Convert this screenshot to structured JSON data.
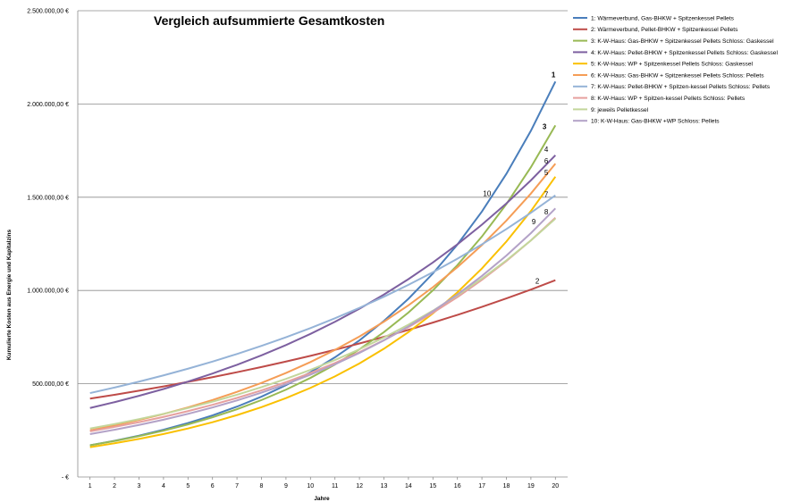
{
  "chart_data": {
    "type": "line",
    "title": "Vergleich aufsummierte Gesamtkosten",
    "xlabel": "Jahre",
    "ylabel": "Kumulierte Kosten aus Energie und Kapitalzins",
    "x": [
      1,
      2,
      3,
      4,
      5,
      6,
      7,
      8,
      9,
      10,
      11,
      12,
      13,
      14,
      15,
      16,
      17,
      18,
      19,
      20
    ],
    "xlim": [
      0.5,
      20.5
    ],
    "ylim": [
      0,
      2500000
    ],
    "y_ticks": [
      0,
      500000,
      1000000,
      1500000,
      2000000,
      2500000
    ],
    "y_tick_labels": [
      "-   €",
      "500.000,00 €",
      "1.000.000,00 €",
      "1.500.000,00 €",
      "2.000.000,00 €",
      "2.500.000,00 €"
    ],
    "grid": true,
    "legend_position": "right",
    "series": [
      {
        "name": "1: Wärmeverbund, Gas-BHKW + Spitzenkessel Pellets",
        "label": "1",
        "color": "#4a7ebb",
        "start": 170000,
        "end": 2120000
      },
      {
        "name": "2: Wärmeverbund, Pellet-BHKW + Spitzenkessel Pellets",
        "label": "2",
        "color": "#be4b48",
        "start": 420000,
        "end": 1055000
      },
      {
        "name": "3: K-W-Haus: Gas-BHKW + Spitzenkessel Pellets Schloss: Gaskessel",
        "label": "3",
        "color": "#98b954",
        "start": 170000,
        "end": 1885000
      },
      {
        "name": "4: K-W-Haus: Pellet-BHKW + Spitzenkessel Pellets Schloss: Gaskessel",
        "label": "4",
        "color": "#7d60a0",
        "start": 370000,
        "end": 1725000
      },
      {
        "name": "5: K-W-Haus: WP + Spitzenkessel Pellets Schloss: Gaskessel",
        "label": "5",
        "color": "#fac000",
        "start": 160000,
        "end": 1610000
      },
      {
        "name": "6: K-W-Haus: Gas-BHKW + Spitzenkessel Pellets Schloss: Pellets",
        "label": "6",
        "color": "#f59d56",
        "start": 250000,
        "end": 1680000
      },
      {
        "name": "7: K-W-Haus: Pellet-BHKW + Spitzen-kessel Pellets Schloss: Pellets",
        "label": "7",
        "color": "#95b3d7",
        "start": 450000,
        "end": 1510000
      },
      {
        "name": "8: K-W-Haus: WP + Spitzen-kessel Pellets Schloss: Pellets",
        "label": "8",
        "color": "#e6a09e",
        "start": 245000,
        "end": 1390000
      },
      {
        "name": "9: jeweils Pelletkessel",
        "label": "9",
        "color": "#c3d69b",
        "start": 260000,
        "end": 1385000
      },
      {
        "name": "10: K-W-Haus: Gas-BHKW +WP Schloss: Pellets",
        "label": "10",
        "color": "#b3a2c7",
        "start": 230000,
        "end": 1440000
      }
    ]
  }
}
